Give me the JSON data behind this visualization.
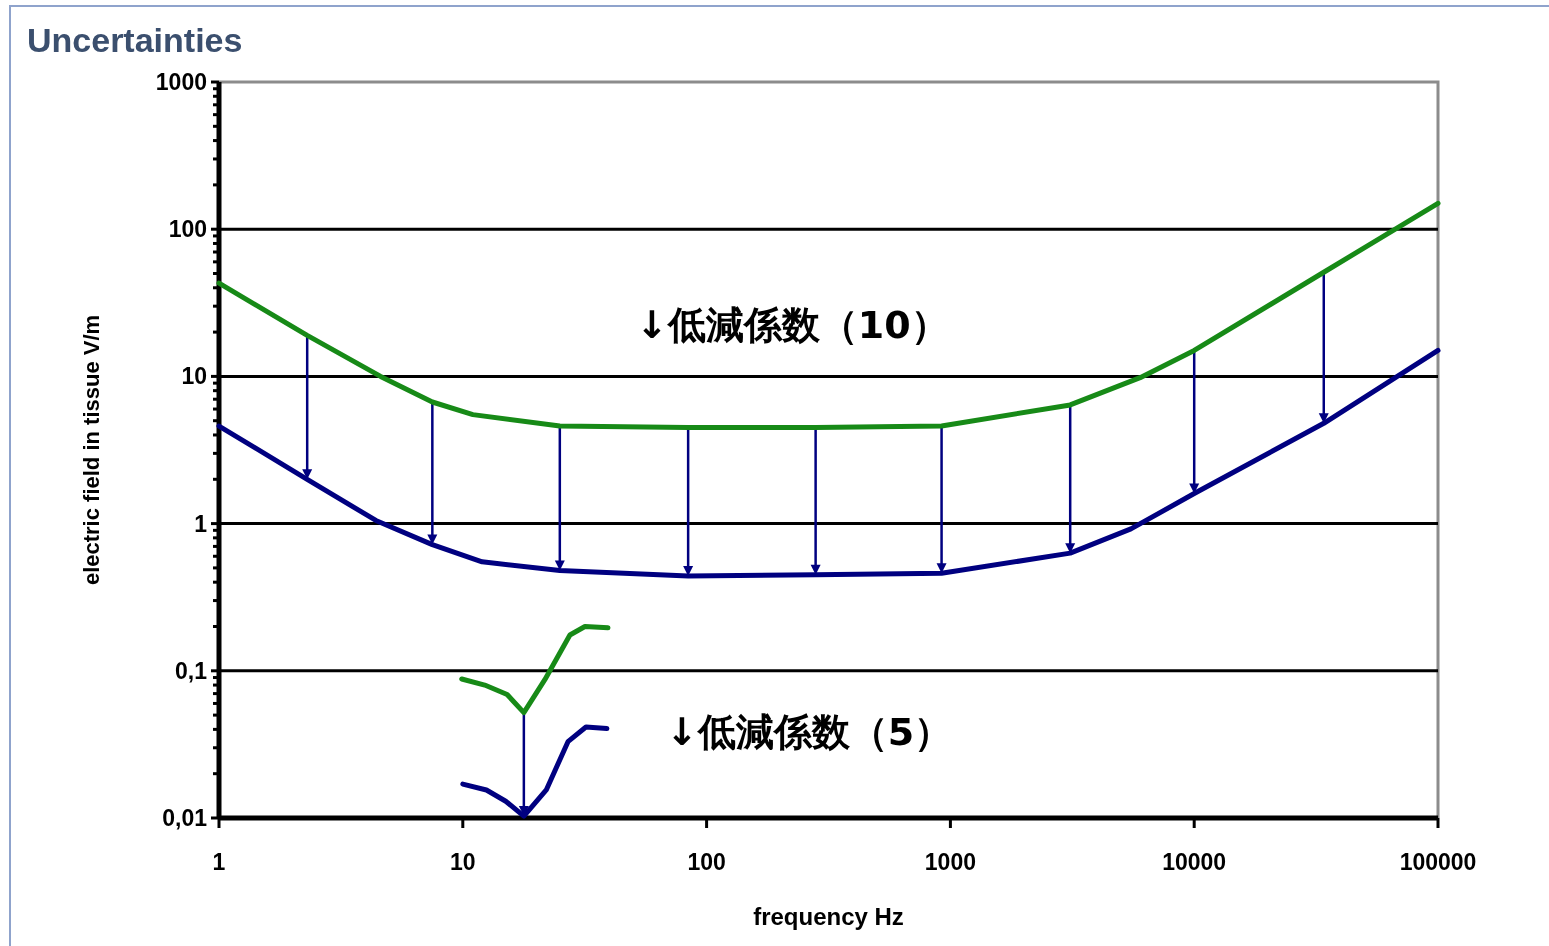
{
  "chart_data": {
    "type": "line",
    "title": "Uncertainties",
    "xlabel": "frequency Hz",
    "ylabel": "electric field in tissue V/m",
    "log": "xy",
    "grid": "y",
    "xlim": [
      1,
      100000
    ],
    "ylim": [
      0.01,
      1000
    ],
    "xticks": [
      1,
      10,
      100,
      1000,
      10000,
      100000
    ],
    "yticks": [
      {
        "value": 0.01,
        "label": "0,01"
      },
      {
        "value": 0.1,
        "label": "0,1"
      },
      1,
      10,
      100,
      1000
    ],
    "annotations": [
      "↓低減係数（10）",
      "↓低減係数（5）"
    ],
    "series": [
      {
        "color": "#178a17",
        "x": [
          1,
          2.3,
          4.6,
          7.5,
          11,
          25,
          84,
          280,
          920,
          3100,
          6000,
          10000,
          34000,
          100000
        ],
        "values": [
          43,
          19,
          10,
          6.7,
          5.5,
          4.6,
          4.5,
          4.5,
          4.6,
          6.4,
          9.8,
          15,
          51,
          150
        ]
      },
      {
        "color": "#000080",
        "x": [
          1,
          2.3,
          4.4,
          7.5,
          12,
          25,
          84,
          280,
          920,
          3100,
          5500,
          10000,
          34000,
          100000
        ],
        "values": [
          4.6,
          2,
          1.05,
          0.72,
          0.55,
          0.48,
          0.44,
          0.45,
          0.46,
          0.63,
          0.92,
          1.6,
          4.8,
          15
        ]
      },
      {
        "color": "#178a17",
        "x": [
          9.9,
          12.3,
          15.2,
          17.8,
          21.7,
          27.5,
          31.7,
          39.4
        ],
        "values": [
          0.088,
          0.08,
          0.069,
          0.052,
          0.087,
          0.175,
          0.2,
          0.196
        ]
      },
      {
        "color": "#000080",
        "x": [
          10,
          12.5,
          15,
          17.8,
          22,
          27,
          32,
          39
        ],
        "values": [
          0.017,
          0.0155,
          0.013,
          0.0103,
          0.0155,
          0.033,
          0.0415,
          0.0405
        ]
      }
    ]
  }
}
